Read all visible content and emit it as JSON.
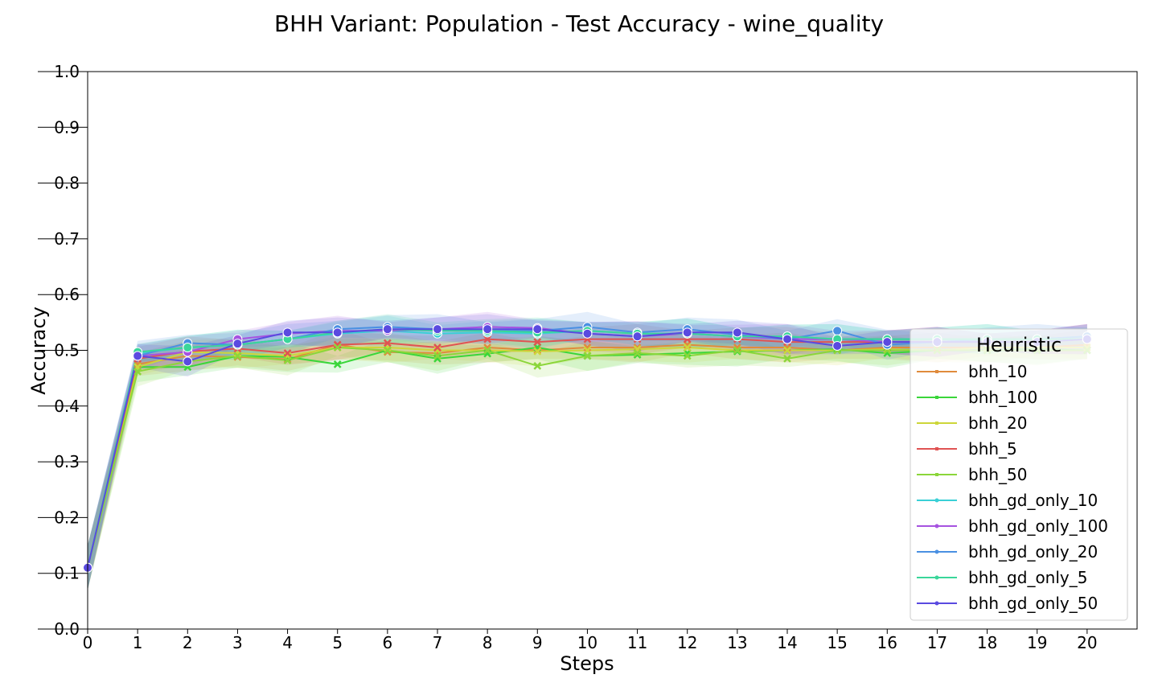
{
  "chart_data": {
    "type": "line",
    "title": "BHH Variant: Population - Test Accuracy - wine_quality",
    "xlabel": "Steps",
    "ylabel": "Accuracy",
    "xlim": [
      0,
      21
    ],
    "ylim": [
      0.0,
      1.0
    ],
    "x_ticks": [
      0,
      1,
      2,
      3,
      4,
      5,
      6,
      7,
      8,
      9,
      10,
      11,
      12,
      13,
      14,
      15,
      16,
      17,
      18,
      19,
      20
    ],
    "y_ticks": [
      0.0,
      0.1,
      0.2,
      0.3,
      0.4,
      0.5,
      0.6,
      0.7,
      0.8,
      0.9,
      1.0
    ],
    "y_tick_labels": [
      "0.0",
      "0.1",
      "0.2",
      "0.3",
      "0.4",
      "0.5",
      "0.6",
      "0.7",
      "0.8",
      "0.9",
      "1.0"
    ],
    "grid": false,
    "legend_title": "Heuristic",
    "legend_placement": "lower-right",
    "x": [
      0,
      1,
      2,
      3,
      4,
      5,
      6,
      7,
      8,
      9,
      10,
      11,
      12,
      13,
      14,
      15,
      16,
      17,
      18,
      19,
      20
    ],
    "series": [
      {
        "name": "bhh_10",
        "color": "#e08b3c",
        "marker": "x",
        "values": [
          0.11,
          0.475,
          0.49,
          0.488,
          0.484,
          0.51,
          0.497,
          0.495,
          0.505,
          0.5,
          0.505,
          0.505,
          0.51,
          0.505,
          0.505,
          0.5,
          0.505,
          0.505,
          0.505,
          0.505,
          0.51
        ]
      },
      {
        "name": "bhh_100",
        "color": "#3ad63a",
        "marker": "x",
        "values": [
          0.11,
          0.47,
          0.47,
          0.49,
          0.488,
          0.475,
          0.5,
          0.485,
          0.494,
          0.505,
          0.49,
          0.492,
          0.495,
          0.498,
          0.5,
          0.502,
          0.495,
          0.5,
          0.5,
          0.502,
          0.5
        ]
      },
      {
        "name": "bhh_20",
        "color": "#cdd63a",
        "marker": "x",
        "values": [
          0.11,
          0.47,
          0.497,
          0.495,
          0.49,
          0.505,
          0.505,
          0.5,
          0.5,
          0.498,
          0.5,
          0.502,
          0.505,
          0.5,
          0.5,
          0.5,
          0.502,
          0.5,
          0.505,
          0.505,
          0.505
        ]
      },
      {
        "name": "bhh_5",
        "color": "#e05353",
        "marker": "x",
        "values": [
          0.11,
          0.485,
          0.498,
          0.503,
          0.495,
          0.51,
          0.513,
          0.505,
          0.52,
          0.515,
          0.52,
          0.52,
          0.52,
          0.52,
          0.515,
          0.515,
          0.515,
          0.515,
          0.515,
          0.515,
          0.52
        ]
      },
      {
        "name": "bhh_50",
        "color": "#8bd63a",
        "marker": "x",
        "values": [
          0.11,
          0.462,
          0.48,
          0.49,
          0.482,
          0.505,
          0.5,
          0.49,
          0.5,
          0.472,
          0.49,
          0.495,
          0.49,
          0.5,
          0.485,
          0.5,
          0.5,
          0.5,
          0.5,
          0.5,
          0.5
        ]
      },
      {
        "name": "bhh_gd_only_10",
        "color": "#3ad0d6",
        "marker": "o",
        "values": [
          0.11,
          0.495,
          0.505,
          0.51,
          0.52,
          0.53,
          0.535,
          0.53,
          0.532,
          0.53,
          0.535,
          0.53,
          0.53,
          0.525,
          0.525,
          0.52,
          0.52,
          0.52,
          0.52,
          0.52,
          0.525
        ]
      },
      {
        "name": "bhh_gd_only_100",
        "color": "#a653e0",
        "marker": "o",
        "values": [
          0.11,
          0.49,
          0.497,
          0.52,
          0.53,
          0.535,
          0.535,
          0.538,
          0.542,
          0.54,
          0.53,
          0.525,
          0.53,
          0.525,
          0.52,
          0.52,
          0.515,
          0.515,
          0.515,
          0.515,
          0.52
        ]
      },
      {
        "name": "bhh_gd_only_20",
        "color": "#4a90e2",
        "marker": "o",
        "values": [
          0.11,
          0.49,
          0.513,
          0.51,
          0.52,
          0.538,
          0.542,
          0.538,
          0.535,
          0.535,
          0.542,
          0.532,
          0.538,
          0.528,
          0.52,
          0.535,
          0.51,
          0.515,
          0.52,
          0.52,
          0.525
        ]
      },
      {
        "name": "bhh_gd_only_5",
        "color": "#3ad69a",
        "marker": "o",
        "values": [
          0.11,
          0.497,
          0.505,
          0.51,
          0.52,
          0.532,
          0.538,
          0.535,
          0.535,
          0.532,
          0.535,
          0.53,
          0.53,
          0.525,
          0.525,
          0.52,
          0.52,
          0.52,
          0.52,
          0.52,
          0.52
        ]
      },
      {
        "name": "bhh_gd_only_50",
        "color": "#5a4ae0",
        "marker": "o",
        "values": [
          0.11,
          0.49,
          0.48,
          0.512,
          0.532,
          0.532,
          0.538,
          0.538,
          0.538,
          0.538,
          0.53,
          0.525,
          0.532,
          0.532,
          0.52,
          0.508,
          0.515,
          0.515,
          0.515,
          0.515,
          0.52
        ]
      }
    ]
  }
}
